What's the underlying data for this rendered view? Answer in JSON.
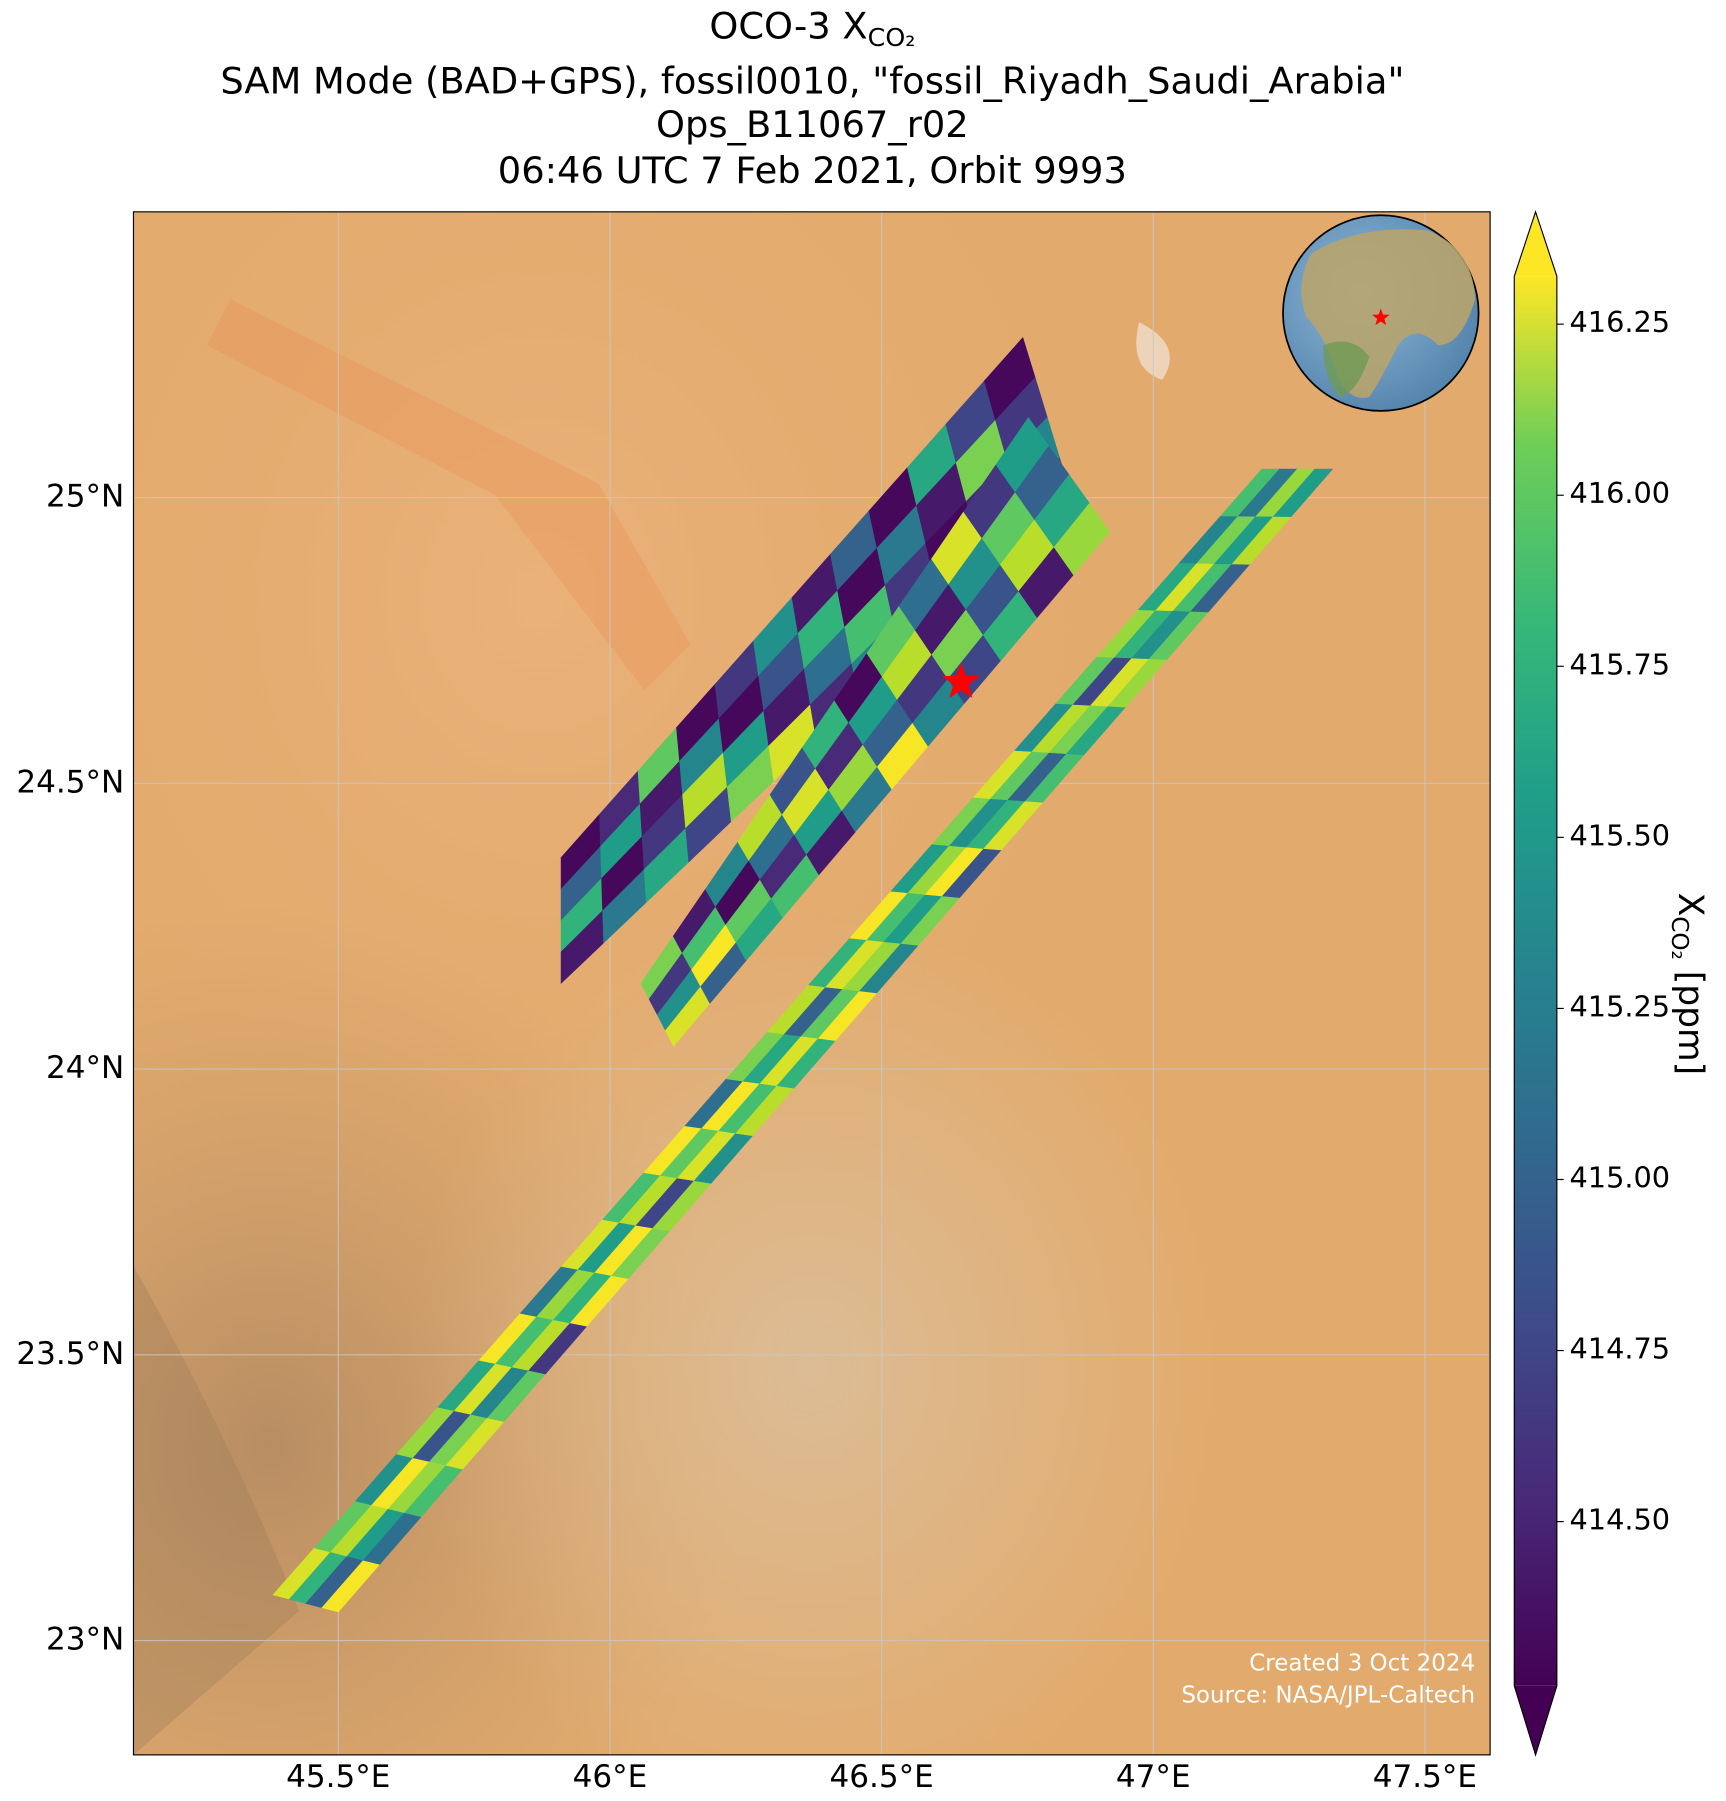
{
  "map": {
    "title": {
      "text": "OCO-3 X",
      "subscript": "CO₂"
    },
    "subtitle_lines": [
      "SAM Mode (BAD+GPS), fossil0010, \"fossil_Riyadh_Saudi_Arabia\"",
      "Ops_B11067_r02",
      "06:46 UTC 7 Feb 2021, Orbit 9993"
    ],
    "xlim": [
      45.123,
      47.62
    ],
    "ylim": [
      22.8,
      25.5
    ],
    "xticks": [
      {
        "value": 45.5,
        "label": "45.5°E"
      },
      {
        "value": 46,
        "label": "46°E"
      },
      {
        "value": 46.5,
        "label": "46.5°E"
      },
      {
        "value": 47,
        "label": "47°E"
      },
      {
        "value": 47.5,
        "label": "47.5°E"
      }
    ],
    "yticks": [
      {
        "value": 23,
        "label": "23°N"
      },
      {
        "value": 23.5,
        "label": "23.5°N"
      },
      {
        "value": 24,
        "label": "24°N"
      },
      {
        "value": 24.5,
        "label": "24.5°N"
      },
      {
        "value": 25,
        "label": "25°N"
      }
    ],
    "grid": true,
    "target": {
      "lon": 46.646,
      "lat": 24.677,
      "color": "#ff0000"
    },
    "clim": [
      414.26,
      416.32
    ],
    "colorbar_ticks": [
      {
        "value": 414.5,
        "label": "414.50"
      },
      {
        "value": 414.75,
        "label": "414.75"
      },
      {
        "value": 415,
        "label": "415.00"
      },
      {
        "value": 415.25,
        "label": "415.25"
      },
      {
        "value": 415.5,
        "label": "415.50"
      },
      {
        "value": 415.75,
        "label": "415.75"
      },
      {
        "value": 416,
        "label": "416.00"
      },
      {
        "value": 416.25,
        "label": "416.25"
      }
    ],
    "colorbar_label": {
      "symbol": "X",
      "subscript": "CO₂",
      "unit": " [ppm]"
    },
    "credits": [
      "Created 3 Oct 2024",
      "Source: NASA/JPL-Caltech"
    ],
    "swaths": [
      {
        "corners": [
          [
            45.91,
            24.37
          ],
          [
            45.91,
            24.15
          ],
          [
            46.76,
            25.28
          ],
          [
            46.85,
            25.0
          ]
        ],
        "values": [
          [
            414.3,
            414.9,
            415.6,
            414.4
          ],
          [
            414.5,
            415.4,
            414.3,
            415.1
          ],
          [
            415.8,
            414.4,
            414.6,
            415.5
          ],
          [
            414.3,
            415.2,
            416.1,
            414.7
          ],
          [
            414.6,
            414.3,
            415.4,
            415.9
          ],
          [
            415.3,
            414.8,
            414.4,
            416.2
          ],
          [
            414.4,
            415.6,
            415.0,
            414.5
          ],
          [
            414.9,
            414.3,
            415.7,
            415.2
          ],
          [
            414.3,
            415.1,
            414.6,
            416.0
          ],
          [
            415.5,
            414.4,
            414.3,
            415.4
          ],
          [
            414.7,
            415.9,
            414.5,
            414.3
          ],
          [
            414.3,
            414.6,
            415.2,
            414.8
          ]
        ]
      },
      {
        "corners": [
          [
            46.057,
            24.15
          ],
          [
            46.117,
            24.04
          ],
          [
            46.77,
            25.14
          ],
          [
            46.92,
            24.94
          ]
        ],
        "values": [
          [
            415.9,
            414.6,
            415.3,
            416.2
          ],
          [
            414.4,
            415.7,
            416.3,
            414.9
          ],
          [
            415.2,
            414.3,
            415.8,
            415.5
          ],
          [
            416.1,
            415.0,
            414.5,
            415.7
          ],
          [
            414.8,
            416.2,
            415.4,
            414.4
          ],
          [
            415.6,
            414.5,
            416.0,
            415.1
          ],
          [
            414.3,
            415.4,
            414.9,
            416.3
          ],
          [
            415.8,
            416.1,
            414.6,
            415.2
          ],
          [
            415.0,
            414.4,
            415.9,
            414.7
          ],
          [
            416.2,
            415.3,
            414.8,
            415.6
          ],
          [
            414.6,
            415.8,
            416.1,
            414.4
          ],
          [
            415.4,
            414.9,
            415.5,
            416.0
          ]
        ]
      },
      {
        "corners": [
          [
            45.38,
            23.08
          ],
          [
            45.5,
            23.05
          ],
          [
            47.2,
            25.05
          ],
          [
            47.33,
            25.05
          ]
        ],
        "values": [
          [
            416.2,
            415.6,
            414.9,
            416.3
          ],
          [
            415.8,
            416.1,
            415.4,
            415.0
          ],
          [
            415.3,
            416.3,
            416.0,
            415.7
          ],
          [
            416.0,
            414.8,
            415.9,
            416.2
          ],
          [
            415.5,
            416.2,
            415.2,
            415.8
          ],
          [
            416.3,
            415.7,
            416.1,
            414.6
          ],
          [
            415.1,
            416.0,
            415.6,
            416.3
          ],
          [
            416.2,
            415.4,
            416.3,
            415.9
          ],
          [
            415.7,
            416.1,
            414.7,
            416.0
          ],
          [
            416.3,
            415.8,
            416.2,
            415.3
          ],
          [
            415.0,
            416.3,
            415.7,
            416.1
          ],
          [
            415.9,
            415.5,
            416.2,
            415.6
          ],
          [
            416.1,
            414.9,
            415.8,
            416.3
          ],
          [
            415.6,
            416.2,
            416.0,
            415.2
          ],
          [
            416.3,
            415.7,
            415.4,
            415.9
          ],
          [
            415.4,
            416.0,
            416.3,
            414.8
          ],
          [
            415.9,
            415.3,
            415.6,
            416.2
          ],
          [
            416.2,
            415.8,
            414.9,
            415.7
          ],
          [
            415.3,
            416.1,
            415.9,
            415.5
          ],
          [
            415.8,
            414.7,
            416.2,
            416.0
          ],
          [
            416.0,
            415.6,
            415.3,
            415.8
          ],
          [
            415.5,
            416.2,
            415.7,
            414.9
          ],
          [
            415.2,
            415.9,
            415.4,
            416.1
          ],
          [
            415.7,
            415.1,
            416.0,
            415.4
          ]
        ]
      }
    ]
  }
}
